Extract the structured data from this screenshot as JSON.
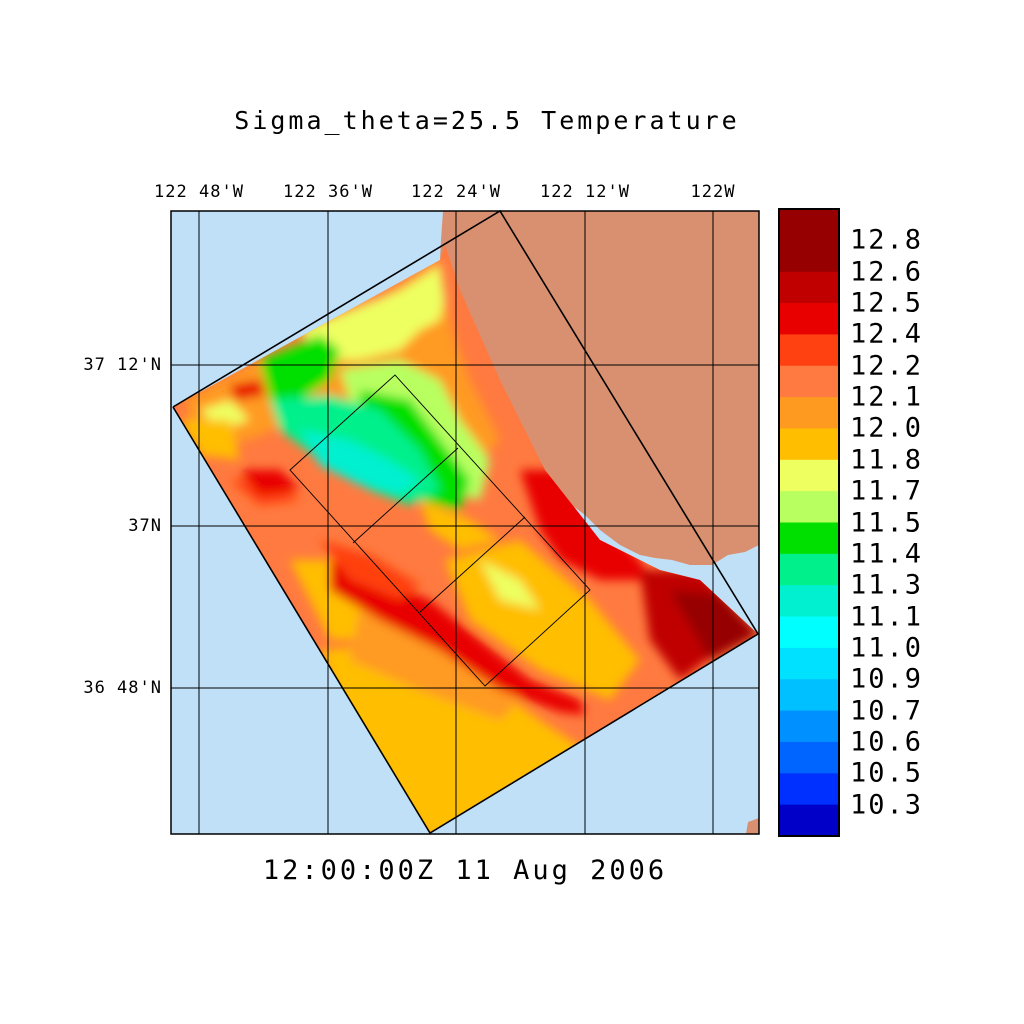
{
  "title": "Sigma_theta=25.5 Temperature",
  "timestamp": "12:00:00Z  11 Aug 2006",
  "axes": {
    "longitude_labels": [
      "122 48'W",
      "122 36'W",
      "122 24'W",
      "122 12'W",
      "122W"
    ],
    "latitude_labels": [
      "37 12'N",
      "37N",
      "36 48'N"
    ]
  },
  "colorbar": {
    "labels": [
      "12.8",
      "12.6",
      "12.5",
      "12.4",
      "12.2",
      "12.1",
      "12.0",
      "11.8",
      "11.7",
      "11.5",
      "11.4",
      "11.3",
      "11.1",
      "11.0",
      "10.9",
      "10.7",
      "10.6",
      "10.5",
      "10.3"
    ],
    "colors": [
      "#960000",
      "#c00000",
      "#e80000",
      "#ff4010",
      "#ff7a40",
      "#ff9a20",
      "#ffbe00",
      "#eeff60",
      "#b8ff60",
      "#00e000",
      "#00f08c",
      "#00f0d0",
      "#00ffff",
      "#00e0ff",
      "#00c0ff",
      "#0090ff",
      "#0064ff",
      "#0030ff",
      "#0000c8"
    ]
  },
  "map": {
    "ocean_color": "#c0e0f8",
    "land_color": "#d99070"
  }
}
